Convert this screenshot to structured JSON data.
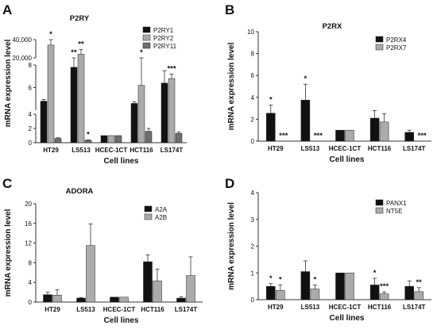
{
  "colors": {
    "black": "#111111",
    "light_gray": "#ababab",
    "dark_gray": "#6e6e6e",
    "axis": "#333333"
  },
  "chart_data": [
    {
      "panel": "A",
      "type": "bar",
      "title": "P2RY",
      "xlabel": "Cell lines",
      "ylabel": "mRNA expression level",
      "broken_axis": true,
      "axis_segments": [
        [
          0,
          4
        ],
        [
          4,
          8
        ],
        [
          20000,
          40000
        ]
      ],
      "yticks": [
        "0",
        "2",
        "4",
        "6",
        "8",
        "20,000",
        "40,000"
      ],
      "legend": "top-right",
      "categories": [
        "HT29",
        "LS513",
        "HCEC-1CT",
        "HCT116",
        "LS174T"
      ],
      "series": [
        {
          "name": "P2RY1",
          "color": "#111111",
          "values": [
            4.8,
            7.8,
            1.0,
            4.6,
            6.4
          ],
          "errors": [
            0.15,
            0.9,
            0,
            0.15,
            1.1
          ],
          "annotations": [
            "",
            "**",
            "",
            "",
            ""
          ]
        },
        {
          "name": "P2RY2",
          "color": "#ababab",
          "values": [
            34000,
            24000,
            1.0,
            6.2,
            6.8
          ],
          "errors": [
            9000,
            5000,
            0,
            2.3,
            0.4
          ],
          "annotations": [
            "*",
            "**",
            "",
            "*",
            "***"
          ]
        },
        {
          "name": "P2RY11",
          "color": "#6e6e6e",
          "values": [
            0.6,
            0.35,
            1.0,
            1.6,
            1.3
          ],
          "errors": [
            0.1,
            0.05,
            0,
            0.4,
            0.2
          ],
          "annotations": [
            "",
            "*",
            "",
            "",
            ""
          ]
        }
      ]
    },
    {
      "panel": "B",
      "type": "bar",
      "title": "P2RX",
      "xlabel": "Cell lines",
      "ylabel": "mRNA expression level",
      "ylim": [
        0,
        10
      ],
      "yticks": [
        "0",
        "2",
        "4",
        "6",
        "8",
        "10"
      ],
      "legend": "top-right",
      "categories": [
        "HT29",
        "LS513",
        "HCEC-1CT",
        "HCT116",
        "LS174T"
      ],
      "series": [
        {
          "name": "P2RX4",
          "color": "#111111",
          "values": [
            2.55,
            3.75,
            1.0,
            2.1,
            0.8
          ],
          "errors": [
            0.75,
            1.45,
            0,
            0.7,
            0.2
          ],
          "annotations": [
            "*",
            "*",
            "",
            "",
            ""
          ]
        },
        {
          "name": "P2RX7",
          "color": "#ababab",
          "values": [
            0,
            0,
            1.0,
            1.75,
            0
          ],
          "errors": [
            0,
            0,
            0,
            0.75,
            0
          ],
          "annotations": [
            "***",
            "***",
            "",
            "",
            "***"
          ]
        }
      ]
    },
    {
      "panel": "C",
      "type": "bar",
      "title": "ADORA",
      "xlabel": "Cell lines",
      "ylabel": "mRNA expression level",
      "ylim": [
        0,
        20
      ],
      "yticks": [
        "0",
        "4",
        "8",
        "12",
        "16",
        "20"
      ],
      "legend": "top-right",
      "categories": [
        "HT29",
        "LS513",
        "HCEC-1CT",
        "HCT116",
        "LS174T"
      ],
      "series": [
        {
          "name": "A2A",
          "color": "#111111",
          "values": [
            1.5,
            0.8,
            1.0,
            8.2,
            0.8
          ],
          "errors": [
            0.5,
            0.1,
            0,
            1.4,
            0.3
          ],
          "annotations": [
            "",
            "",
            "",
            "",
            ""
          ]
        },
        {
          "name": "A2B",
          "color": "#ababab",
          "values": [
            1.4,
            11.5,
            1.0,
            4.3,
            5.4
          ],
          "errors": [
            1.1,
            4.4,
            0,
            2.4,
            3.8
          ],
          "annotations": [
            "",
            "",
            "",
            "",
            ""
          ]
        }
      ]
    },
    {
      "panel": "D",
      "type": "bar",
      "title": "",
      "xlabel": "Cell lines",
      "ylabel": "mRNA expression level",
      "ylim": [
        0,
        4
      ],
      "yticks": [
        "0",
        "1",
        "2",
        "3",
        "4"
      ],
      "legend": "top-right",
      "categories": [
        "HT29",
        "LS513",
        "HCEC-1CT",
        "HCT116",
        "LS174T"
      ],
      "series": [
        {
          "name": "PANX1",
          "color": "#111111",
          "values": [
            0.5,
            1.05,
            1.0,
            0.55,
            0.5
          ],
          "errors": [
            0.1,
            0.4,
            0,
            0.25,
            0.2
          ],
          "annotations": [
            "*",
            "",
            "",
            "*",
            ""
          ]
        },
        {
          "name": "NT5E",
          "color": "#ababab",
          "values": [
            0.35,
            0.4,
            1.0,
            0.22,
            0.3
          ],
          "errors": [
            0.2,
            0.15,
            0,
            0.07,
            0.15
          ],
          "annotations": [
            "*",
            "*",
            "",
            "***",
            "**"
          ]
        }
      ]
    }
  ]
}
